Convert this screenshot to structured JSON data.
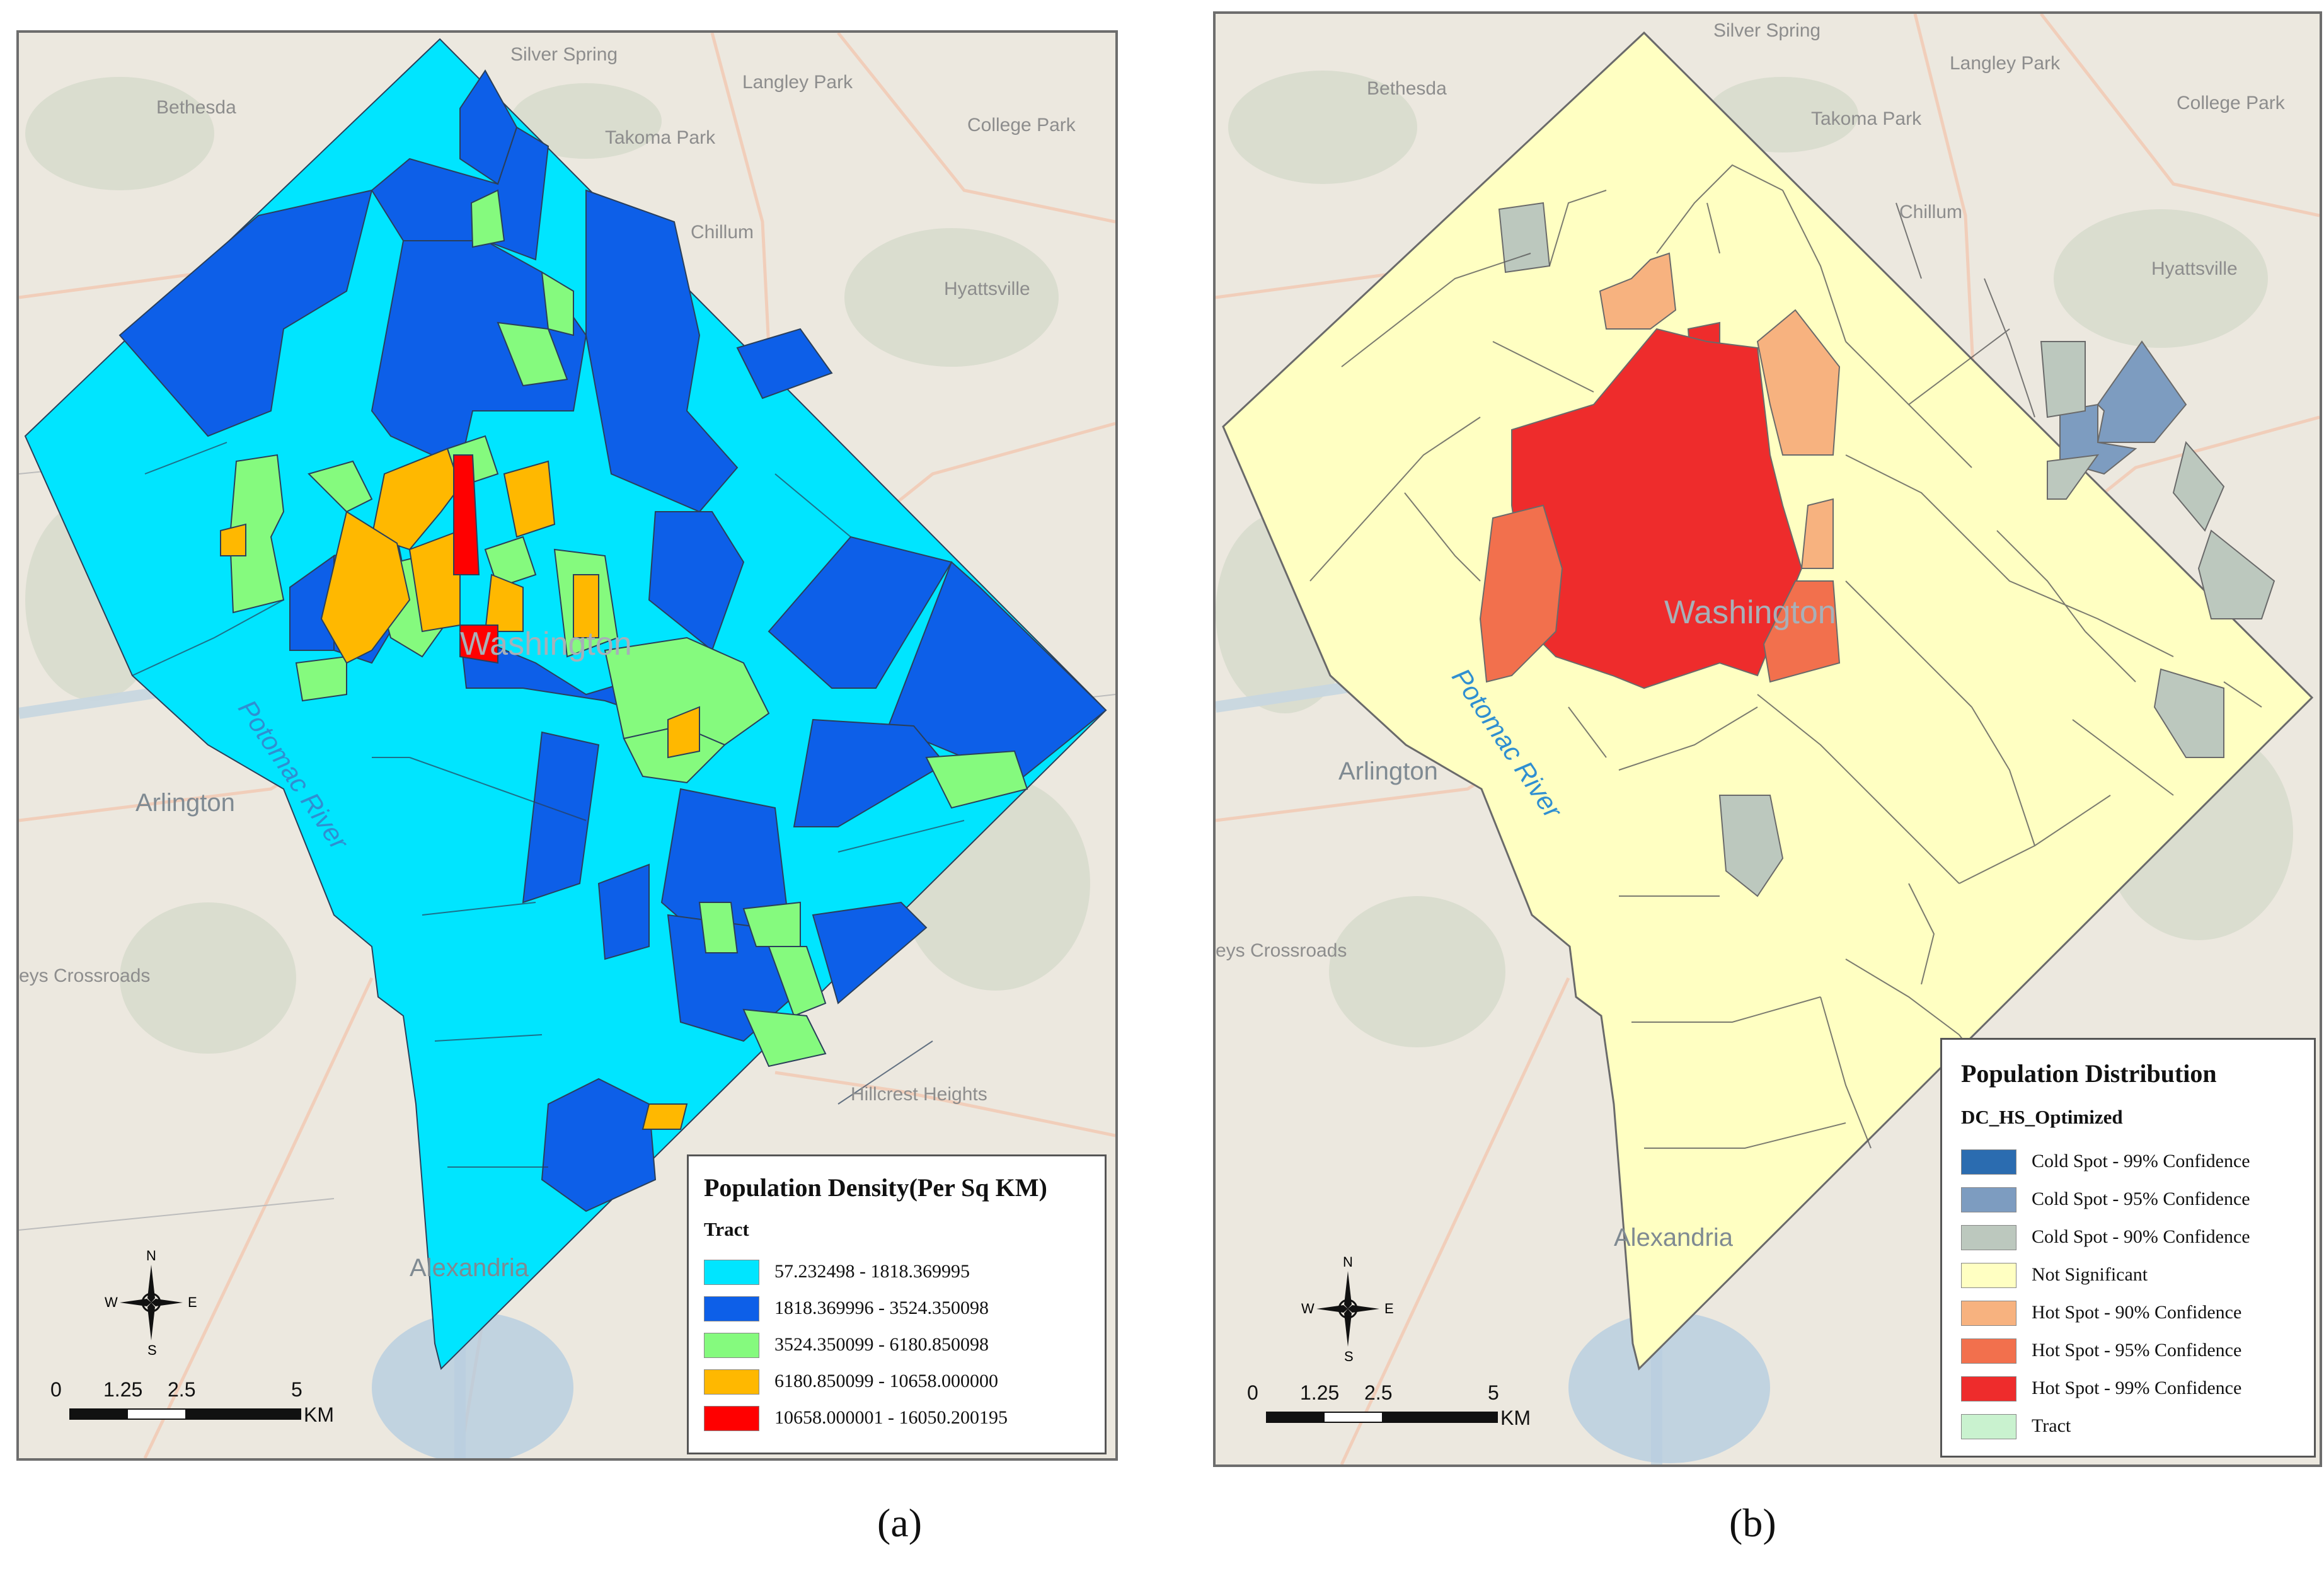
{
  "panel_a": {
    "caption": "(a)",
    "places": {
      "silver_spring": "Silver Spring",
      "bethesda": "Bethesda",
      "langley_park": "Langley Park",
      "takoma_park": "Takoma Park",
      "college_park": "College Park",
      "chillum": "Chillum",
      "hyattsville": "Hyattsville",
      "washington": "Washington",
      "arlington": "Arlington",
      "potomac_river": "Potomac River",
      "crossroads": "eys Crossroads",
      "hillcrest_heights": "Hillcrest Heights",
      "alexandria": "Alexandria"
    },
    "legend": {
      "title": "Population Density(Per Sq KM)",
      "subtitle": "Tract",
      "items": [
        {
          "label": "57.232498 - 1818.369995",
          "color": "#00e5ff"
        },
        {
          "label": "1818.369996 - 3524.350098",
          "color": "#0d5fe8"
        },
        {
          "label": "3524.350099 - 6180.850098",
          "color": "#85fa7e"
        },
        {
          "label": "6180.850099 - 10658.000000",
          "color": "#ffb800"
        },
        {
          "label": "10658.000001 - 16050.200195",
          "color": "#ff0000"
        }
      ]
    },
    "scale": {
      "ticks": [
        "0",
        "1.25",
        "2.5",
        "5"
      ],
      "unit": "KM"
    },
    "compass": {
      "n": "N",
      "s": "S",
      "e": "E",
      "w": "W"
    }
  },
  "panel_b": {
    "caption": "(b)",
    "places": {
      "silver_spring": "Silver Spring",
      "bethesda": "Bethesda",
      "langley_park": "Langley Park",
      "takoma_park": "Takoma Park",
      "college_park": "College Park",
      "chillum": "Chillum",
      "hyattsville": "Hyattsville",
      "washington": "Washington",
      "arlington": "Arlington",
      "potomac_river": "Potomac River",
      "crossroads": "eys Crossroads",
      "alexandria": "Alexandria"
    },
    "legend": {
      "title": "Population Distribution",
      "subtitle": "DC_HS_Optimized",
      "items": [
        {
          "label": "Cold Spot - 99% Confidence",
          "color": "#2b6cb0"
        },
        {
          "label": "Cold Spot - 95% Confidence",
          "color": "#7d9cc0"
        },
        {
          "label": "Cold Spot - 90% Confidence",
          "color": "#bcc8be"
        },
        {
          "label": "Not Significant",
          "color": "#ffffc2"
        },
        {
          "label": "Hot Spot - 90% Confidence",
          "color": "#f7b27f"
        },
        {
          "label": "Hot Spot - 95% Confidence",
          "color": "#f2704d"
        },
        {
          "label": "Hot Spot - 99% Confidence",
          "color": "#ee2c2c"
        },
        {
          "label": "Tract",
          "color": "#c9f2cf"
        }
      ]
    },
    "scale": {
      "ticks": [
        "0",
        "1.25",
        "2.5",
        "5"
      ],
      "unit": "KM"
    },
    "compass": {
      "n": "N",
      "s": "S",
      "e": "E",
      "w": "W"
    }
  }
}
